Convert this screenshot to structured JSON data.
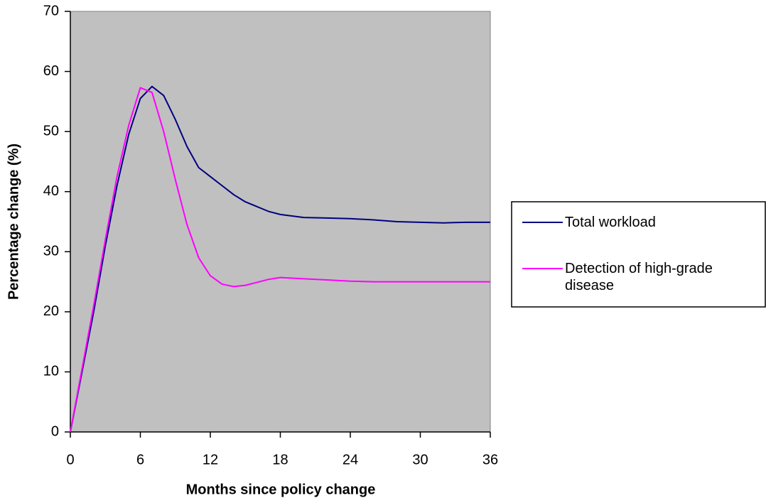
{
  "chart_data": {
    "type": "line",
    "x_label": "Months since policy change",
    "y_label": "Percentage change (%)",
    "x": [
      0,
      1,
      2,
      3,
      4,
      5,
      6,
      7,
      8,
      9,
      10,
      11,
      12,
      13,
      14,
      15,
      16,
      17,
      18,
      20,
      22,
      24,
      26,
      28,
      30,
      32,
      34,
      36
    ],
    "series": [
      {
        "name": "Total workload",
        "color": "#000080",
        "values": [
          0,
          10,
          20,
          31,
          41,
          49.5,
          55.5,
          57.5,
          56,
          52,
          47.5,
          44,
          42.5,
          41,
          39.5,
          38.3,
          37.5,
          36.7,
          36.2,
          35.7,
          35.6,
          35.5,
          35.3,
          35,
          34.9,
          34.8,
          34.9,
          34.9
        ]
      },
      {
        "name": "Detection of high-grade disease",
        "color": "#ff00ff",
        "values": [
          0,
          10.5,
          21,
          32,
          42.5,
          51,
          57.3,
          56.5,
          50,
          42,
          34.5,
          29,
          26,
          24.6,
          24.2,
          24.4,
          24.9,
          25.4,
          25.7,
          25.5,
          25.3,
          25.1,
          25,
          25,
          25,
          25,
          25,
          25
        ]
      }
    ],
    "xlim": [
      0,
      36
    ],
    "xticks": [
      0,
      6,
      12,
      18,
      24,
      30,
      36
    ],
    "ylim": [
      0,
      70
    ],
    "yticks": [
      0,
      10,
      20,
      30,
      40,
      50,
      60,
      70
    ],
    "plot_background": "#c0c0c0",
    "legend": "right"
  }
}
